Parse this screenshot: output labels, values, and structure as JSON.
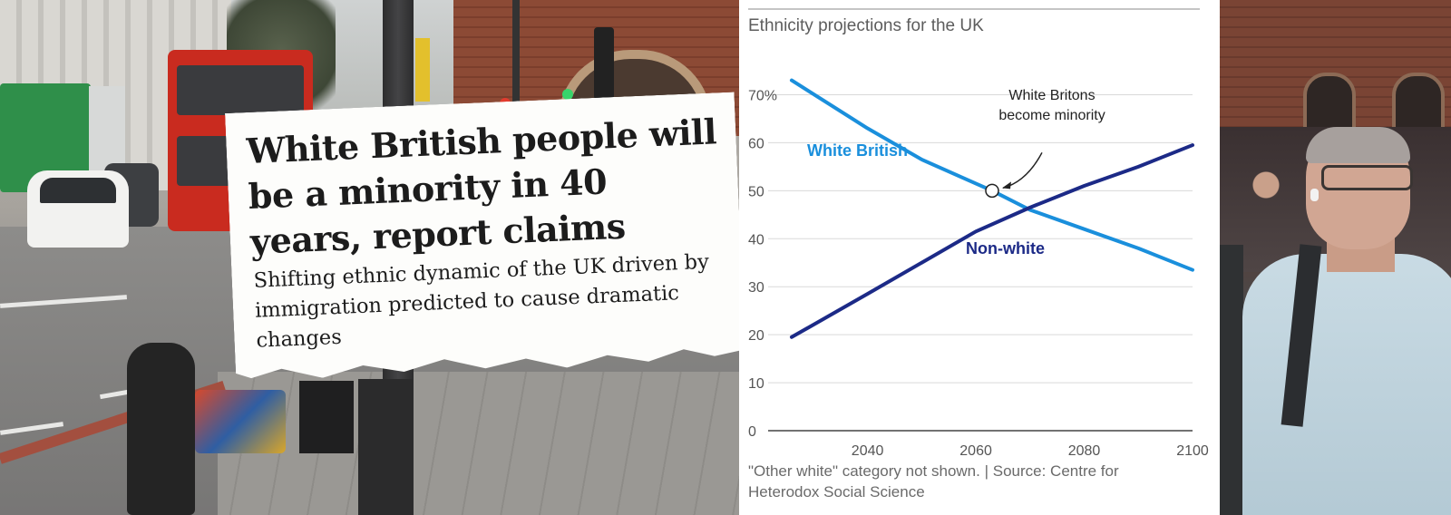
{
  "clipping": {
    "headline": "White British people will be a minority in 40 years, report claims",
    "subheadline": "Shifting ethnic dynamic of the UK driven by immigration predicted to cause dramatic changes"
  },
  "chart_data": {
    "type": "line",
    "title": "Ethnicity projections for the UK",
    "xlabel": "",
    "ylabel": "",
    "xlim": [
      2025,
      2100
    ],
    "ylim": [
      0,
      75
    ],
    "x_ticks": [
      2040,
      2060,
      2080,
      2100
    ],
    "y_ticks": [
      0,
      10,
      20,
      30,
      40,
      50,
      60,
      70
    ],
    "y_tick_labels": [
      "0",
      "10",
      "20",
      "30",
      "40",
      "50",
      "60",
      "70%"
    ],
    "grid": true,
    "series": [
      {
        "name": "White British",
        "color": "#1a8fdc",
        "x": [
          2026,
          2040,
          2050,
          2060,
          2063,
          2070,
          2080,
          2090,
          2100
        ],
        "values": [
          73,
          63,
          56.5,
          51.5,
          50,
          46,
          42,
          38,
          33.5
        ]
      },
      {
        "name": "Non-white",
        "color": "#1c2a87",
        "x": [
          2026,
          2040,
          2050,
          2060,
          2070,
          2080,
          2090,
          2100
        ],
        "values": [
          19.5,
          28.5,
          35,
          41.5,
          46.5,
          51,
          55,
          59.5
        ]
      }
    ],
    "annotation": {
      "text_lines": [
        "White Britons",
        "become minority"
      ],
      "x": 2063,
      "y": 50
    },
    "note": "\"Other white\" category not shown. | Source: Centre for Heterodox Social Science"
  }
}
